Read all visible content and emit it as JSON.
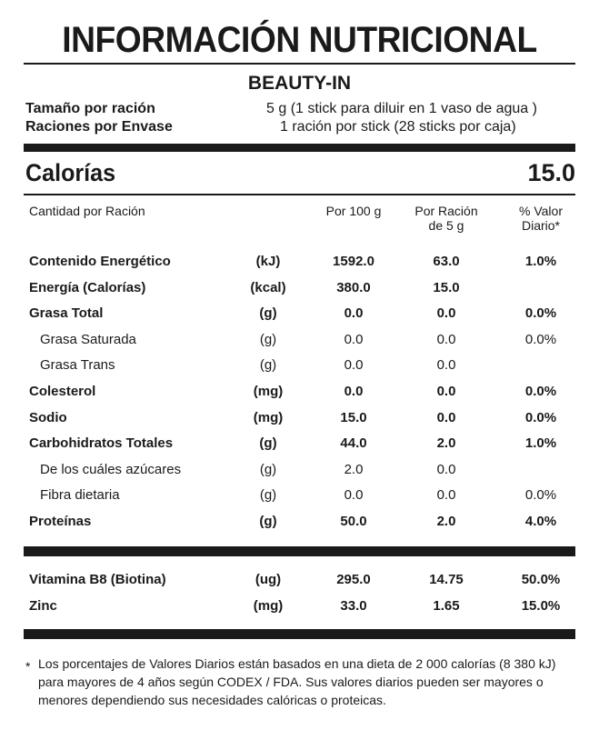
{
  "title": "INFORMACIÓN NUTRICIONAL",
  "product": "BEAUTY-IN",
  "serving": {
    "size_label": "Tamaño por ración",
    "size_value": "5 g (1 stick para diluir en 1 vaso de  agua )",
    "per_container_label": "Raciones por Envase",
    "per_container_value": "1 ración por stick (28 sticks por caja)"
  },
  "calories": {
    "label": "Calorías",
    "value": "15.0"
  },
  "columns": {
    "amount": "Cantidad por Ración",
    "per100": "Por 100 g",
    "per_serving_1": "Por Ración",
    "per_serving_2": "de 5 g",
    "dv_1": "% Valor",
    "dv_2": "Diario*"
  },
  "nutrients": [
    {
      "name": "Contenido Energético",
      "unit": "(kJ)",
      "per100": "1592.0",
      "per_serving": "63.0",
      "dv": "1.0%",
      "bold": true
    },
    {
      "name": "Energía (Calorías)",
      "unit": "(kcal)",
      "per100": "380.0",
      "per_serving": "15.0",
      "dv": "",
      "bold": true
    },
    {
      "name": "Grasa Total",
      "unit": "(g)",
      "per100": "0.0",
      "per_serving": "0.0",
      "dv": "0.0%",
      "bold": true
    },
    {
      "name": "Grasa Saturada",
      "unit": "(g)",
      "per100": "0.0",
      "per_serving": "0.0",
      "dv": "0.0%",
      "bold": false
    },
    {
      "name": "Grasa Trans",
      "unit": "(g)",
      "per100": "0.0",
      "per_serving": "0.0",
      "dv": "",
      "bold": false
    },
    {
      "name": "Colesterol",
      "unit": "(mg)",
      "per100": "0.0",
      "per_serving": "0.0",
      "dv": "0.0%",
      "bold": true
    },
    {
      "name": "Sodio",
      "unit": "(mg)",
      "per100": "15.0",
      "per_serving": "0.0",
      "dv": "0.0%",
      "bold": true
    },
    {
      "name": "Carbohidratos Totales",
      "unit": "(g)",
      "per100": "44.0",
      "per_serving": "2.0",
      "dv": "1.0%",
      "bold": true
    },
    {
      "name": "De los cuáles azúcares",
      "unit": "(g)",
      "per100": "2.0",
      "per_serving": "0.0",
      "dv": "",
      "bold": false
    },
    {
      "name": "Fibra dietaria",
      "unit": "(g)",
      "per100": "0.0",
      "per_serving": "0.0",
      "dv": "0.0%",
      "bold": false
    },
    {
      "name": "Proteínas",
      "unit": "(g)",
      "per100": "50.0",
      "per_serving": "2.0",
      "dv": "4.0%",
      "bold": true
    }
  ],
  "vitamins": [
    {
      "name": "Vitamina B8 (Biotina)",
      "unit": "(ug)",
      "per100": "295.0",
      "per_serving": "14.75",
      "dv": "50.0%",
      "bold": true
    },
    {
      "name": "Zinc",
      "unit": "(mg)",
      "per100": "33.0",
      "per_serving": "1.65",
      "dv": "15.0%",
      "bold": true
    }
  ],
  "footnote": {
    "star": "*",
    "text": "Los porcentajes de Valores Diarios están basados en una dieta de 2 000 calorías (8 380 kJ) para mayores de 4 años según CODEX / FDA. Sus valores diarios pueden ser mayores o menores dependiendo sus necesidades calóricas o proteicas."
  }
}
